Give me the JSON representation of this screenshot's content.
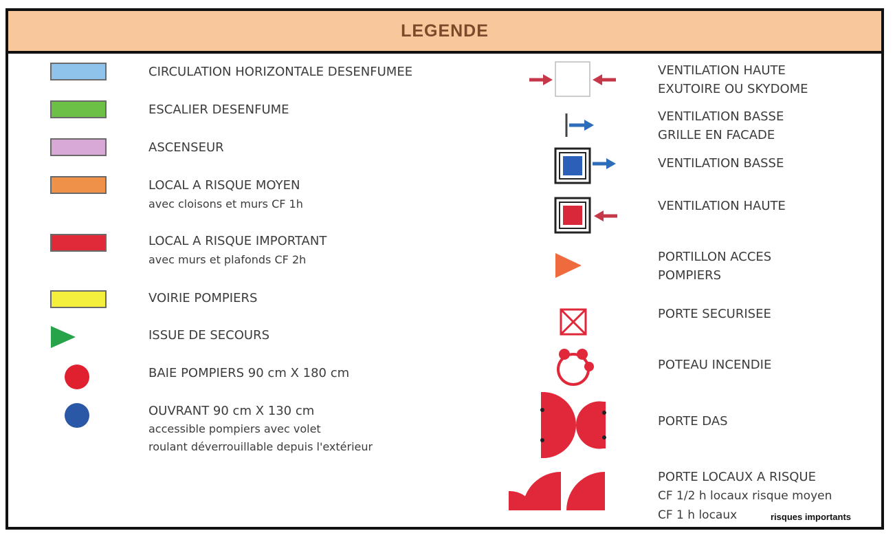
{
  "title": "LEGENDE",
  "left_items": [
    {
      "label": "CIRCULATION HORIZONTALE DESENFUMEE",
      "sub": "",
      "color": "#8fc3ec",
      "icon": "swatch"
    },
    {
      "label": "ESCALIER DESENFUME",
      "sub": "",
      "color": "#6cc045",
      "icon": "swatch"
    },
    {
      "label": "ASCENSEUR",
      "sub": "",
      "color": "#d8a9d6",
      "icon": "swatch"
    },
    {
      "label": "LOCAL A RISQUE MOYEN",
      "sub": "avec cloisons et murs CF 1h",
      "color": "#f0914a",
      "icon": "swatch"
    },
    {
      "label": "LOCAL A RISQUE IMPORTANT",
      "sub": "avec murs et plafonds CF 2h",
      "color": "#e02a3a",
      "icon": "swatch"
    },
    {
      "label": "VOIRIE POMPIERS",
      "sub": "",
      "color": "#f4ee3c",
      "icon": "swatch"
    },
    {
      "label": "ISSUE DE SECOURS",
      "sub": "",
      "color": "#27a34a",
      "icon": "triangle"
    },
    {
      "label": "BAIE POMPIERS 90 cm X 180 cm",
      "sub": "",
      "color": "#e0202e",
      "icon": "circle"
    },
    {
      "label": "OUVRANT 90 cm X 130 cm",
      "sub": "accessible pompiers avec volet",
      "sub2": "roulant déverrouillable depuis l'extérieur",
      "color": "#2b58a6",
      "icon": "circle"
    }
  ],
  "right_items": [
    {
      "line1": "VENTILATION HAUTE",
      "line2": "EXUTOIRE OU SKYDOME",
      "icon": "skydome-icon"
    },
    {
      "line1": "VENTILATION BASSE",
      "line2": "GRILLE EN FACADE",
      "icon": "grille-icon"
    },
    {
      "line1": "VENTILATION BASSE",
      "line2": "",
      "icon": "vent-basse-icon"
    },
    {
      "line1": "VENTILATION HAUTE",
      "line2": "",
      "icon": "vent-haute-icon"
    },
    {
      "line1": "PORTILLON ACCES",
      "line2": "POMPIERS",
      "icon": "portillon-icon"
    },
    {
      "line1": "PORTE SECURISEE",
      "line2": "",
      "icon": "porte-securisee-icon"
    },
    {
      "line1": "POTEAU INCENDIE",
      "line2": "",
      "icon": "poteau-icon"
    },
    {
      "line1": "PORTE DAS",
      "line2": "",
      "icon": "porte-das-icon"
    },
    {
      "line1": "PORTE LOCAUX A RISQUE",
      "line2": "CF 1/2 h locaux risque moyen",
      "line3": "CF 1 h locaux",
      "icon": "porte-locaux-icon"
    }
  ],
  "footnote": "risques importants",
  "colors": {
    "arrow_red": "#c7374a",
    "arrow_blue": "#2c6cb8",
    "header_bg": "#f8c79b"
  }
}
